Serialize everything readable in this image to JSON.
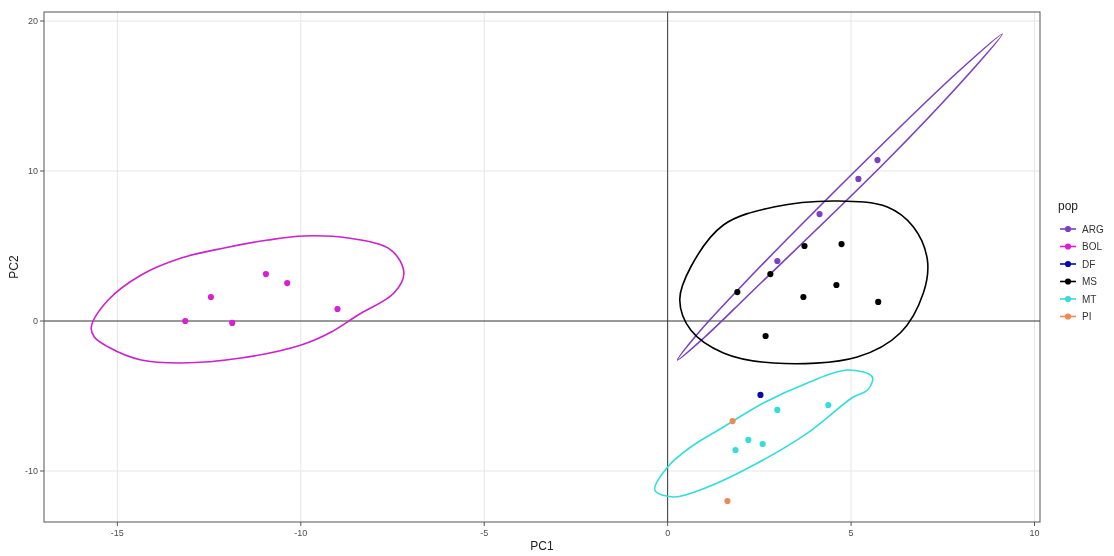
{
  "chart_data": {
    "type": "scatter",
    "xlabel": "PC1",
    "ylabel": "PC2",
    "legend_title": "pop",
    "xlim": [
      -17,
      10.15
    ],
    "ylim": [
      -13.4,
      20.6
    ],
    "xticks": [
      -15,
      -10,
      -5,
      0,
      5,
      10
    ],
    "yticks": [
      -10,
      0,
      10,
      20
    ],
    "grid": true,
    "legend": "right",
    "marker": "circle",
    "series": [
      {
        "name": "ARG",
        "color": "#7b3fc4",
        "x": [
          2.99,
          4.14,
          5.2,
          5.72
        ],
        "values": [
          4.0,
          7.13,
          9.47,
          10.73
        ]
      },
      {
        "name": "BOL",
        "color": "#d91fd6",
        "x": [
          -13.15,
          -12.45,
          -11.87,
          -10.95,
          -10.37,
          -9.0
        ],
        "values": [
          0.0,
          1.6,
          -0.13,
          3.13,
          2.53,
          0.8
        ]
      },
      {
        "name": "DF",
        "color": "#0a0aa8",
        "x": [
          2.53
        ],
        "values": [
          -4.93
        ]
      },
      {
        "name": "MS",
        "color": "#000000",
        "x": [
          1.9,
          2.8,
          3.73,
          4.74,
          3.7,
          4.6,
          5.74,
          2.67
        ],
        "values": [
          1.93,
          3.13,
          5.0,
          5.13,
          1.6,
          2.4,
          1.27,
          -1.0
        ]
      },
      {
        "name": "MT",
        "color": "#33dddd",
        "x": [
          2.99,
          4.38,
          2.2,
          1.85,
          2.59
        ],
        "values": [
          -5.93,
          -5.6,
          -7.93,
          -8.6,
          -8.2
        ]
      },
      {
        "name": "PI",
        "color": "#ee8855",
        "x": [
          1.77,
          1.63
        ],
        "values": [
          -6.67,
          -12.0
        ]
      }
    ]
  }
}
